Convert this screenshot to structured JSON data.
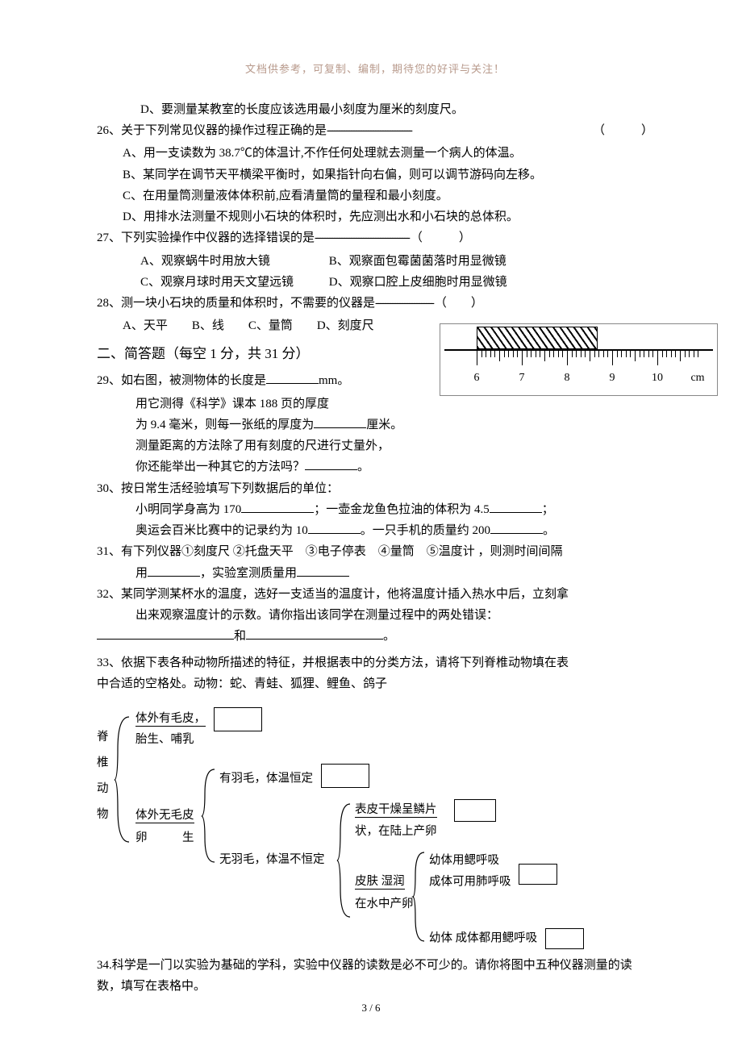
{
  "header_note": "文档供参考，可复制、编制，期待您的好评与关注！",
  "q25d": "D、要测量某教室的长度应该选用最小刻度为厘米的刻度尺。",
  "q26": {
    "stem": "26、关于下列常见仪器的操作过程正确的是",
    "dashes": "-----------------------------------",
    "paren": "（　　　）",
    "a": "A、用一支读数为 38.7℃的体温计,不作任何处理就去测量一个病人的体温。",
    "b": "B、某同学在调节天平横梁平衡时，如果指针向右偏，则可以调节游码向左移。",
    "c": "C、在用量筒测量液体体积前,应看清量筒的量程和最小刻度。",
    "d": "D、用排水法测量不规则小石块的体积时，先应测出水和小石块的总体积。"
  },
  "q27": {
    "stem": "27、下列实验操作中仪器的选择错误的是",
    "dashes": "---------------------------------------",
    "paren": "（　　　）",
    "a": "A、观察蜗牛时用放大镜",
    "b": "B、观察面包霉菌菌落时用显微镜",
    "c": "C、观察月球时用天文望远镜",
    "d": "D、观察口腔上皮细胞时用显微镜"
  },
  "q28": {
    "stem": "28、测一块小石块的质量和体积时，不需要的仪器是",
    "dashes": "------------------------",
    "paren": "（　　）",
    "opts": "A、天平　　B、线　　C、量筒　　D、刻度尺"
  },
  "section2": "二、简答题（每空 1 分，共 31 分）",
  "q29": {
    "l1a": "29、如右图，被测物体的长度是",
    "l1b": "mm。",
    "l2": "用它测得《科学》课本 188 页的厚度",
    "l3a": "为 9.4 毫米，则每一张纸的厚度为",
    "l3b": "厘米。",
    "l4": "测量距离的方法除了用有刻度的尺进行丈量外，",
    "l5a": "你还能举出一种其它的方法吗？",
    "l5b": "。"
  },
  "q30": {
    "stem": "30、按日常生活经验填写下列数据后的单位：",
    "l1a": "小明同学身高为 170",
    "l1b": "；一壶金龙鱼色拉油的体积为 4.5",
    "l1c": "；",
    "l2a": "奥运会百米比赛中的记录约为 10",
    "l2b": "。一只手机的质量约 200",
    "l2c": "。"
  },
  "q31": {
    "stem": "31、有下列仪器①刻度尺 ②托盘天平　③电子停表　④量筒　⑤温度计 ，则测时间间隔",
    "l2a": "用",
    "l2b": "，实验室测质量用"
  },
  "q32": {
    "stem": "32、某同学测某杯水的温度，选好一支适当的温度计，他将温度计插入热水中后，立刻拿",
    "l2": "出来观察温度计的示数。请你指出该同学在测量过程中的两处错误：",
    "l3mid": "和",
    "l3end": "。"
  },
  "q33": {
    "l1": "33、依据下表各种动物所描述的特征，并根据表中的分类方法，请将下列脊椎动物填在表",
    "l2": "中合适的空格处。动物：蛇、青蛙、狐狸、鲤鱼、鸽子"
  },
  "tree": {
    "vert": [
      "脊",
      "椎",
      "动",
      "物"
    ],
    "n1a": "体外有毛皮，",
    "n1b": "胎生、哺乳",
    "n2a": "体外无毛皮",
    "n2b": "卵　　　生",
    "n3": "有羽毛，体温恒定",
    "n4": "无羽毛，体温不恒定",
    "n5a": "表皮干燥呈鳞片",
    "n5b": "状，在陆上产卵",
    "n6a": "皮肤 湿润",
    "n6b": "在水中产卵",
    "n7a": "幼体用鳃呼吸",
    "n7b": "成体可用肺呼吸",
    "n8": "幼体 成体都用鳃呼吸"
  },
  "q34": "34.科学是一门以实验为基础的学科，实验中仪器的读数是必不可少的。请你将图中五种仪器测量的读数，填写在表格中。",
  "ruler": {
    "nums": [
      "6",
      "7",
      "8",
      "9",
      "10",
      "cm"
    ]
  },
  "pagenum": "3 / 6"
}
